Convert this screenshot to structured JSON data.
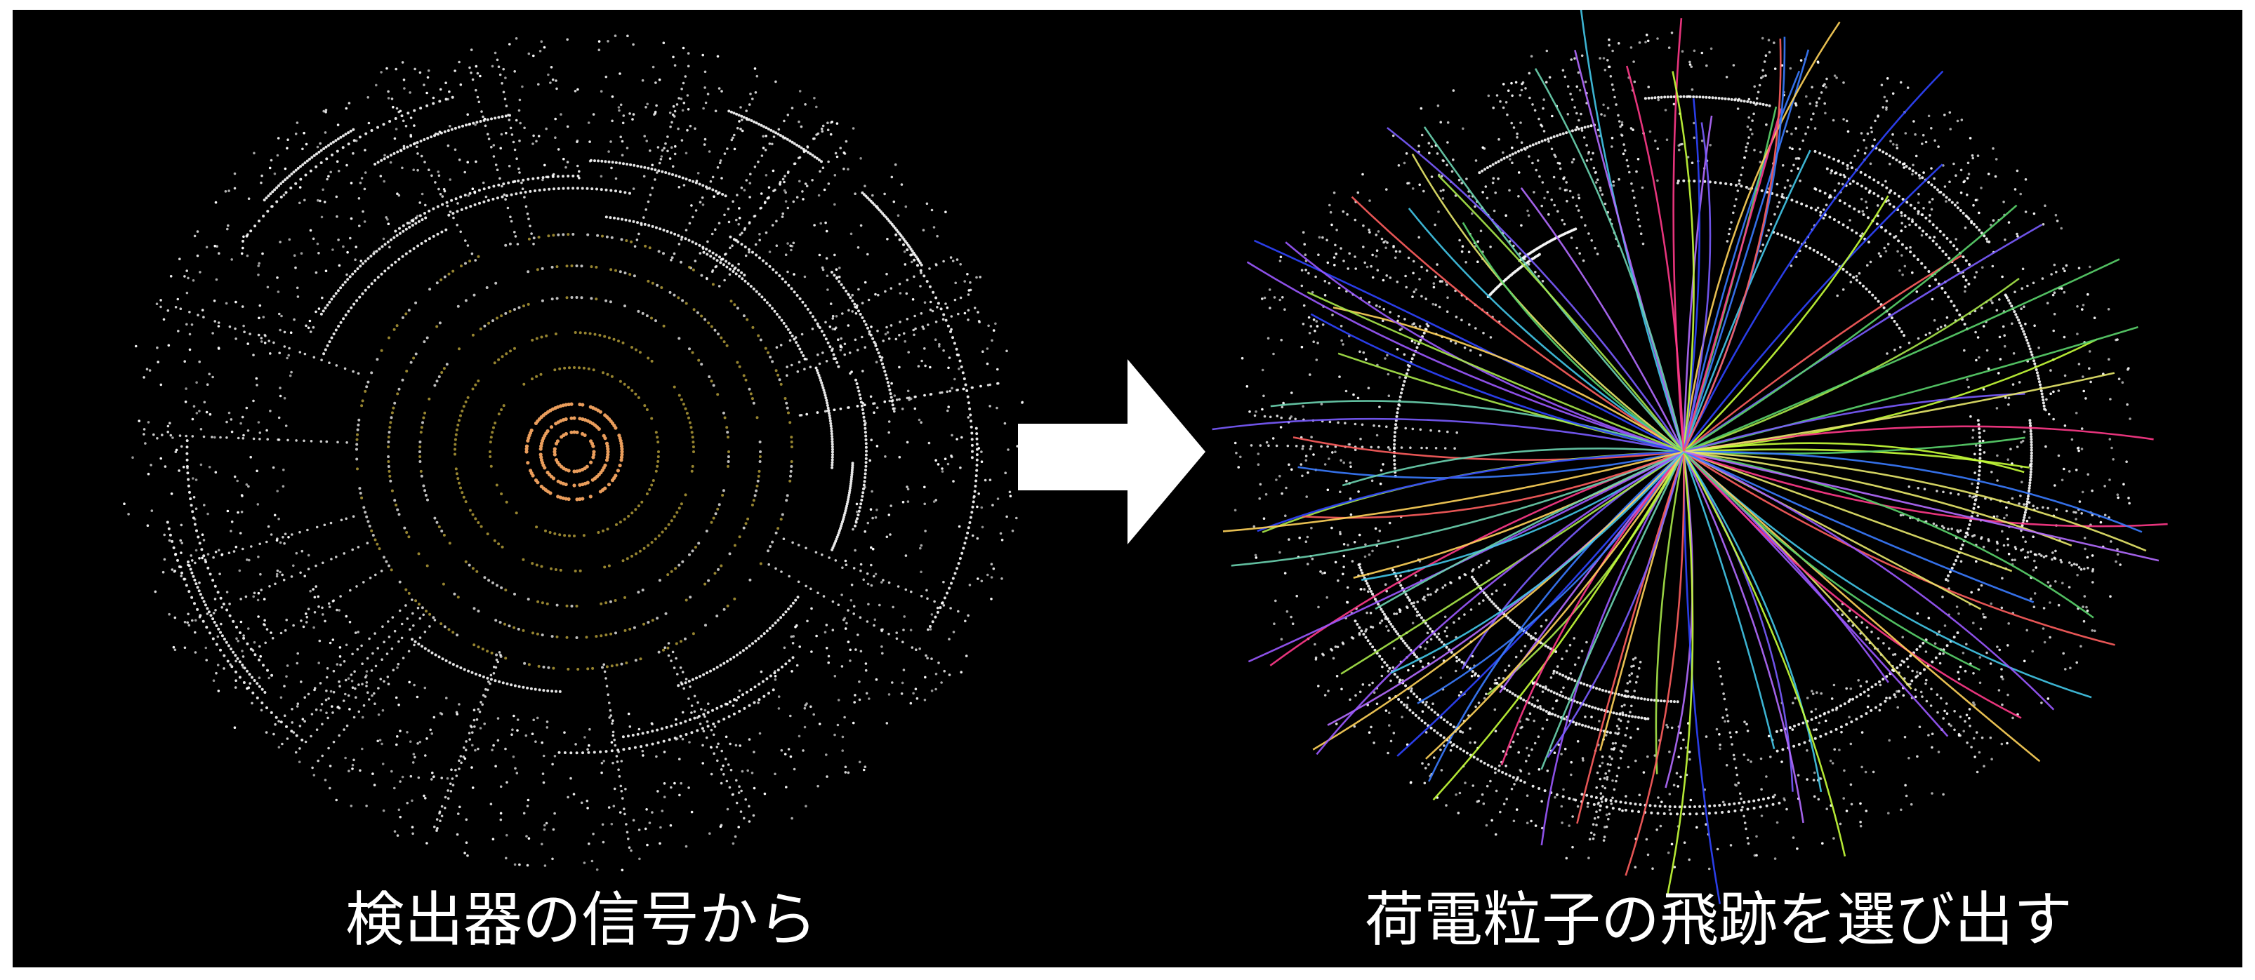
{
  "captions": {
    "left": "検出器の信号から",
    "right": "荷電粒子の飛跡を選び出す"
  },
  "colors": {
    "background": "#000000",
    "frame": "#ffffff",
    "arrow": "#ffffff",
    "hits": "#ffffff",
    "inner_hits": "#f4a460",
    "mid_hits": "#c8b040",
    "track_palette": [
      "#7a5cff",
      "#9b59ff",
      "#3a7bff",
      "#2f44ff",
      "#c6ff3a",
      "#a8e84a",
      "#5ad36b",
      "#ff3a8a",
      "#ff5e5e",
      "#ffd35a",
      "#43c6e8",
      "#b36bff",
      "#e8e86b",
      "#6bd3b0"
    ]
  },
  "icons": {
    "arrow": "right-arrow-icon"
  }
}
